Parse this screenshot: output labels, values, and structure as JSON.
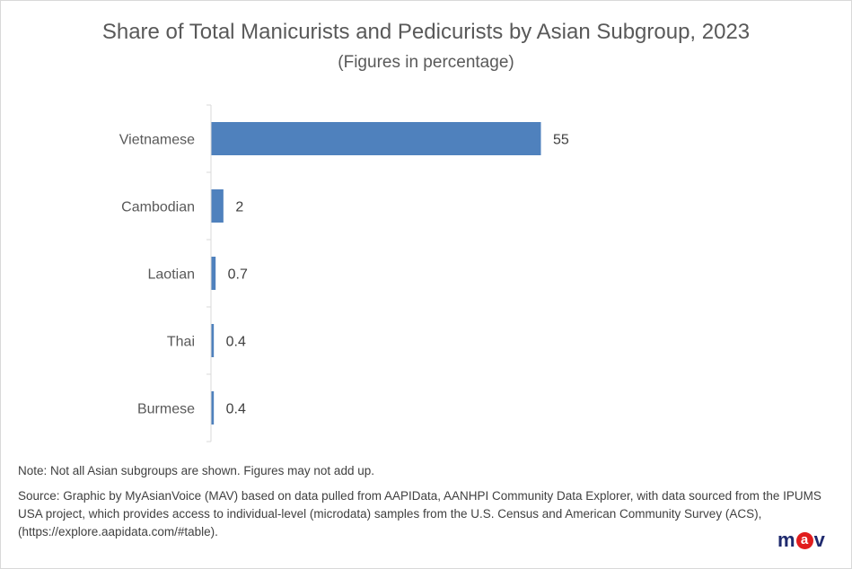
{
  "chart_data": {
    "type": "bar",
    "orientation": "horizontal",
    "title": "Share of Total Manicurists and Pedicurists by Asian Subgroup, 2023",
    "subtitle": "(Figures in percentage)",
    "categories": [
      "Vietnamese",
      "Cambodian",
      "Laotian",
      "Thai",
      "Burmese"
    ],
    "values": [
      55,
      2,
      0.7,
      0.4,
      0.4
    ],
    "data_labels": [
      "55",
      "2",
      "0.7",
      "0.4",
      "0.4"
    ],
    "xlim": [
      0,
      60
    ],
    "grid": false,
    "bar_color": "#4f81bd"
  },
  "note": "Note:  Not all Asian subgroups are shown. Figures may not add up.",
  "source": "Source: Graphic by MyAsianVoice (MAV) based on data pulled from AAPIData, AANHPI Community Data Explorer, with data sourced from the IPUMS USA project, which provides access to individual-level (microdata) samples from the U.S. Census and American Community Survey (ACS), (https://explore.aapidata.com/#table).",
  "logo": {
    "text": "mav",
    "pre": "m",
    "mid": "a",
    "post": "v"
  }
}
